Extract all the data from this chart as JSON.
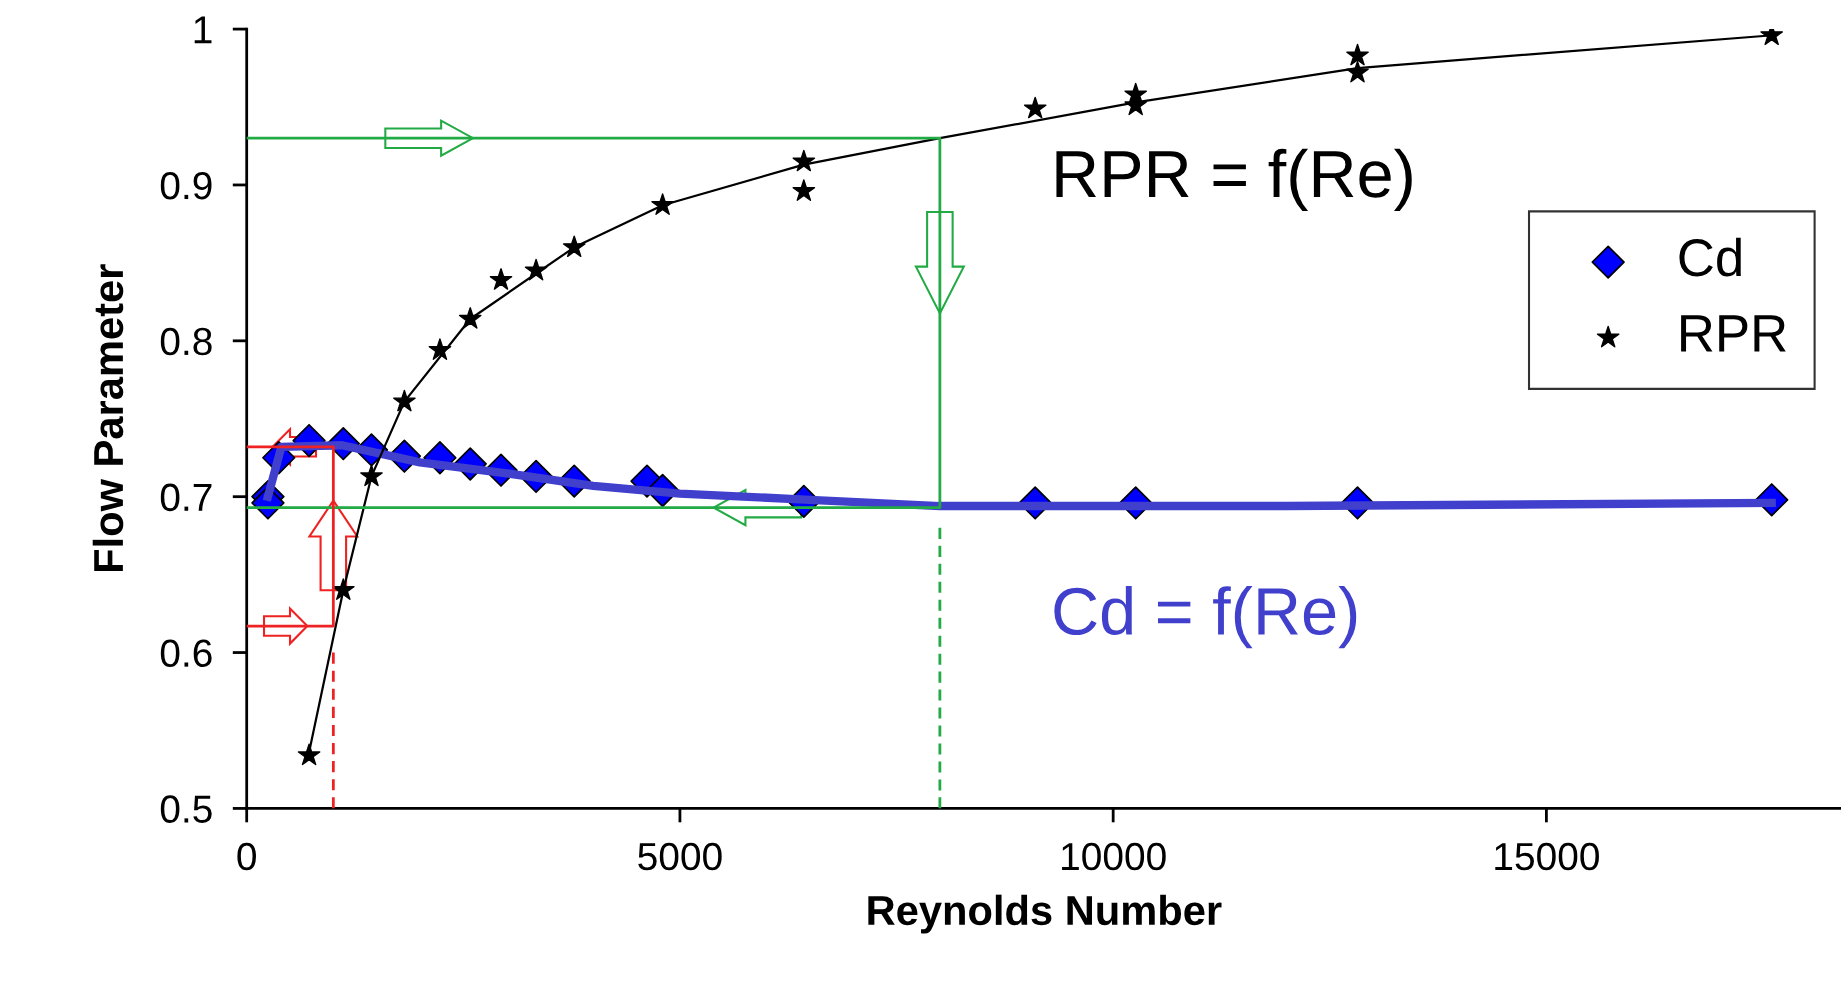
{
  "chart_data": {
    "type": "scatter",
    "xlabel": "Reynolds Number",
    "ylabel": "Flow Parameter",
    "xlim": [
      0,
      18400
    ],
    "ylim": [
      0.5,
      1
    ],
    "xticks": [
      0,
      5000,
      10000,
      15000
    ],
    "yticks": [
      0.5,
      0.6,
      0.7,
      0.8,
      0.9,
      1
    ],
    "grid": false,
    "legend": "top right",
    "series": [
      {
        "name": "Cd",
        "marker": "diamond",
        "color": "#0000ff",
        "x": [
          245,
          245,
          370,
          720,
          1115,
          1440,
          1820,
          2230,
          2580,
          2935,
          3340,
          3780,
          4620,
          4800,
          6430,
          9100,
          10260,
          12820,
          17600
        ],
        "values": [
          0.7,
          0.696,
          0.725,
          0.736,
          0.734,
          0.73,
          0.726,
          0.725,
          0.721,
          0.717,
          0.713,
          0.71,
          0.71,
          0.704,
          0.697,
          0.696,
          0.696,
          0.696,
          0.698
        ]
      },
      {
        "name": "RPR",
        "marker": "star",
        "color": "#000000",
        "x": [
          720,
          1115,
          1440,
          1820,
          2230,
          2580,
          2935,
          3340,
          3780,
          4800,
          6430,
          6430,
          9100,
          10260,
          10260,
          12820,
          12820,
          17600
        ],
        "values": [
          0.534,
          0.64,
          0.713,
          0.761,
          0.794,
          0.814,
          0.839,
          0.845,
          0.86,
          0.887,
          0.915,
          0.896,
          0.949,
          0.958,
          0.951,
          0.983,
          0.972,
          0.996
        ]
      },
      {
        "name": "Cd = f(Re)",
        "type": "line",
        "color": "#4040cc",
        "x": [
          245,
          400,
          1100,
          2000,
          3000,
          4000,
          5000,
          6500,
          8000,
          12000,
          17600
        ],
        "values": [
          0.7,
          0.732,
          0.733,
          0.722,
          0.715,
          0.707,
          0.702,
          0.698,
          0.694,
          0.694,
          0.696
        ]
      },
      {
        "name": "RPR = f(Re)",
        "type": "line",
        "color": "#000000",
        "x": [
          720,
          1115,
          1440,
          1820,
          2580,
          3780,
          4800,
          6430,
          8000,
          10260,
          12820,
          17600
        ],
        "values": [
          0.536,
          0.64,
          0.713,
          0.761,
          0.814,
          0.86,
          0.887,
          0.913,
          0.93,
          0.953,
          0.975,
          0.996
        ]
      },
      {
        "type": "line",
        "color": "#22aa44",
        "line_style": "solid",
        "x": [
          0,
          8000,
          8000,
          0
        ],
        "values": [
          0.93,
          0.93,
          0.693,
          0.693
        ]
      },
      {
        "type": "line",
        "color": "#22aa44",
        "line_style": "dashed",
        "x": [
          8000,
          8000
        ],
        "values": [
          0.68,
          0.5
        ]
      },
      {
        "type": "line",
        "color": "#ee2222",
        "line_style": "dashed",
        "x": [
          1000,
          1000
        ],
        "values": [
          0.5,
          0.6
        ]
      },
      {
        "type": "line",
        "color": "#ee2222",
        "line_style": "solid",
        "x": [
          0,
          1000,
          1000,
          0
        ],
        "values": [
          0.617,
          0.617,
          0.732,
          0.732
        ]
      }
    ]
  }
}
